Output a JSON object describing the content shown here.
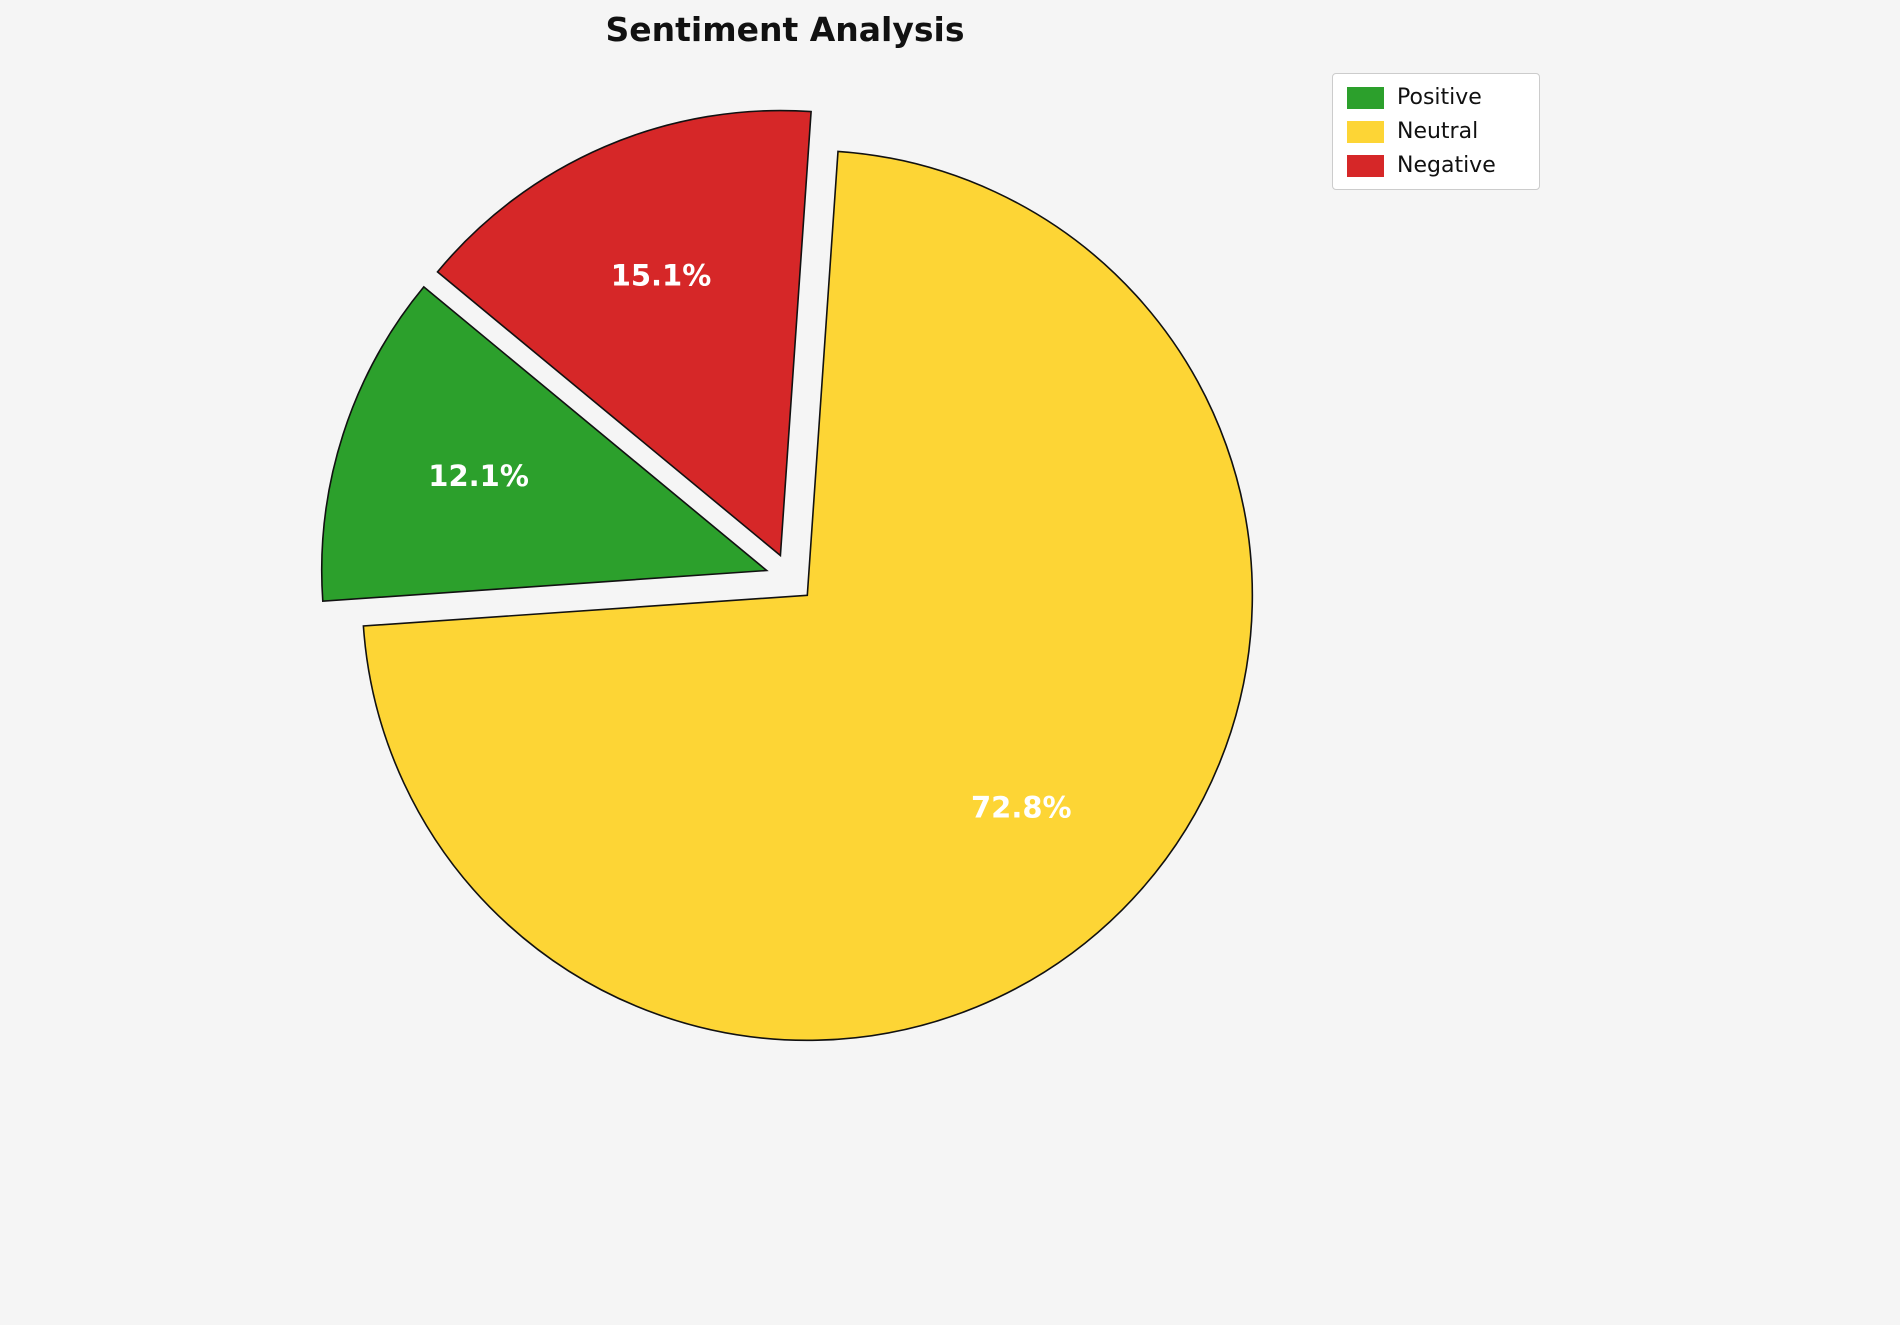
{
  "background_color": "#f5f5f5",
  "title": "Sentiment Analysis",
  "chart_data": {
    "type": "pie",
    "title": "Sentiment Analysis",
    "categories": [
      "Positive",
      "Neutral",
      "Negative"
    ],
    "values": [
      12.1,
      72.8,
      15.1
    ],
    "unit": "%",
    "series": [
      {
        "label": "Positive",
        "value": 12.1,
        "display": "12.1%",
        "color": "#2ca02c"
      },
      {
        "label": "Neutral",
        "value": 72.8,
        "display": "72.8%",
        "color": "#fdd535"
      },
      {
        "label": "Negative",
        "value": 15.1,
        "display": "15.1%",
        "color": "#d62728"
      }
    ],
    "legend_entries": [
      "Positive",
      "Neutral",
      "Negative"
    ],
    "legend_position": "upper-right",
    "layout": {
      "start_angle_deg": 140.4,
      "counterclockwise": true,
      "explode": 0.055,
      "label_distance": 0.68,
      "slice_edge_color": "#111111",
      "slice_label_color": "#ffffff"
    }
  },
  "legend": {
    "items": [
      {
        "label": "Positive",
        "color": "#2ca02c"
      },
      {
        "label": "Neutral",
        "color": "#fdd535"
      },
      {
        "label": "Negative",
        "color": "#d62728"
      }
    ]
  }
}
